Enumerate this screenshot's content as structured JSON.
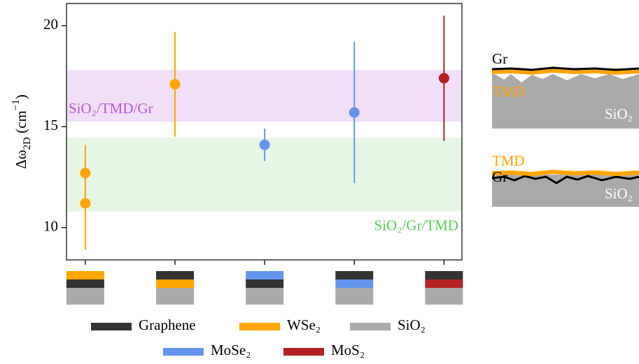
{
  "chart_data": {
    "type": "errorbar",
    "ylabel": [
      {
        "text": "Δω"
      },
      {
        "text": "2D",
        "sub": true
      },
      {
        "text": " (cm"
      },
      {
        "text": "−1",
        "sup": true
      },
      {
        "text": ")"
      }
    ],
    "xlim": [
      -0.21,
      4.2
    ],
    "xticks": [
      0,
      1,
      2,
      3,
      4
    ],
    "ylim": [
      8.4,
      21.1
    ],
    "yticks": [
      10,
      15,
      20
    ],
    "bands": [
      {
        "label": "SiO₂/TMD/Gr",
        "range": [
          15.25,
          17.8
        ],
        "color": "#f0dff6",
        "label_color": "#bb55dd",
        "corner": "left"
      },
      {
        "label": "SiO₂/Gr/TMD",
        "range": [
          10.8,
          14.45
        ],
        "color": "#e5f6e4",
        "label_color": "#55cc55",
        "corner": "right"
      }
    ],
    "series": [
      {
        "color": "#ffa500",
        "x": [
          0,
          0,
          1
        ],
        "values": [
          12.7,
          11.2,
          17.1
        ],
        "errors": [
          1.4,
          2.3,
          2.6
        ]
      },
      {
        "color": "#6495ed",
        "x": [
          2,
          3
        ],
        "values": [
          14.1,
          15.7
        ],
        "errors": [
          0.8,
          3.5
        ]
      },
      {
        "color": "#b22222",
        "x": [
          4
        ],
        "values": [
          17.4
        ],
        "errors": [
          3.1
        ]
      }
    ],
    "legend": [
      {
        "name": "Graphene",
        "color": "#333333"
      },
      {
        "name": "WSe₂",
        "color": "#ffa500"
      },
      {
        "name": "SiO₂",
        "color": "#aaaaaa"
      },
      {
        "name": "MoSe₂",
        "color": "#6495ed"
      },
      {
        "name": "MoS₂",
        "color": "#b22222"
      }
    ],
    "stacks": [
      [
        1,
        0,
        2
      ],
      [
        0,
        1,
        2
      ],
      [
        3,
        0,
        2
      ],
      [
        0,
        3,
        2
      ],
      [
        0,
        4,
        2
      ]
    ]
  },
  "schematics": [
    {
      "labels": [
        "Gr",
        "TMD",
        "SiO₂"
      ]
    },
    {
      "labels": [
        "TMD",
        "Gr",
        "SiO₂"
      ]
    }
  ]
}
